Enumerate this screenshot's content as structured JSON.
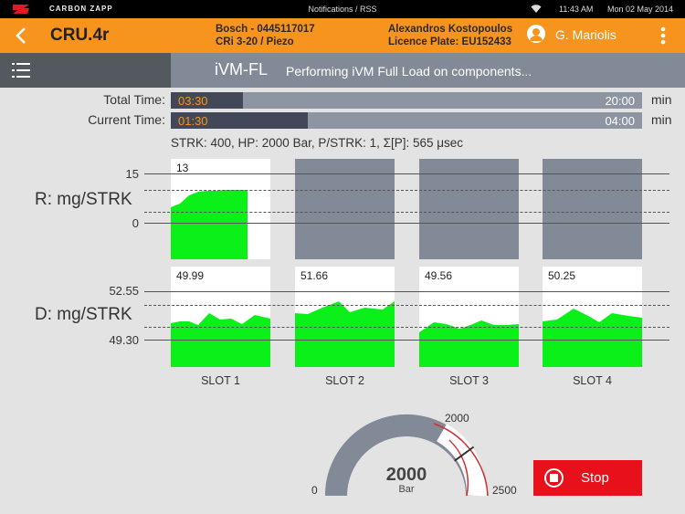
{
  "status_bar": {
    "brand": "CARBON ZAPP",
    "center": "Notifications / RSS",
    "time": "11:43 AM",
    "date": "Mon 02 May 2014"
  },
  "header": {
    "title": "CRU.4r",
    "injector_line1": "Bosch - 0445117017",
    "injector_line2": "CRi 3-20 / Piezo",
    "customer_name": "Alexandros Kostopoulos",
    "licence_plate": "Licence Plate: EU152433",
    "user": "G. Mariolis",
    "accent_color": "#f7941d"
  },
  "subheader": {
    "mode": "iVM-FL",
    "operation": "Performing iVM Full Load on components..."
  },
  "timers": {
    "total": {
      "label": "Total Time:",
      "value": "03:30",
      "max": "20:00",
      "unit": "min",
      "progress": 0.153
    },
    "current": {
      "label": "Current Time:",
      "value": "01:30",
      "max": "04:00",
      "unit": "min",
      "progress": 0.29
    }
  },
  "params": "STRK: 400, HP: 2000 Bar, P/STRK: 1, Σ[P]: 565 μsec",
  "return_chart": {
    "label": "R: mg/STRK",
    "max_label": "15",
    "min_label": "0"
  },
  "delivery_chart": {
    "label": "D: mg/STRK",
    "max_label": "52.55",
    "min_label": "49.30"
  },
  "slots": [
    {
      "name": "SLOT 1",
      "return_value": "13",
      "return_active": true,
      "delivery_value": "49.99"
    },
    {
      "name": "SLOT 2",
      "return_value": "",
      "return_active": false,
      "delivery_value": "51.66"
    },
    {
      "name": "SLOT 3",
      "return_value": "",
      "return_active": false,
      "delivery_value": "49.56"
    },
    {
      "name": "SLOT 4",
      "return_value": "",
      "return_active": false,
      "delivery_value": "50.25"
    }
  ],
  "pressure_gauge": {
    "value": "2000",
    "unit": "Bar",
    "min_label": "0",
    "target_label": "2000",
    "max_label": "2500",
    "level": 0.8
  },
  "stop_button": {
    "label": "Stop",
    "color": "#e8101a"
  }
}
